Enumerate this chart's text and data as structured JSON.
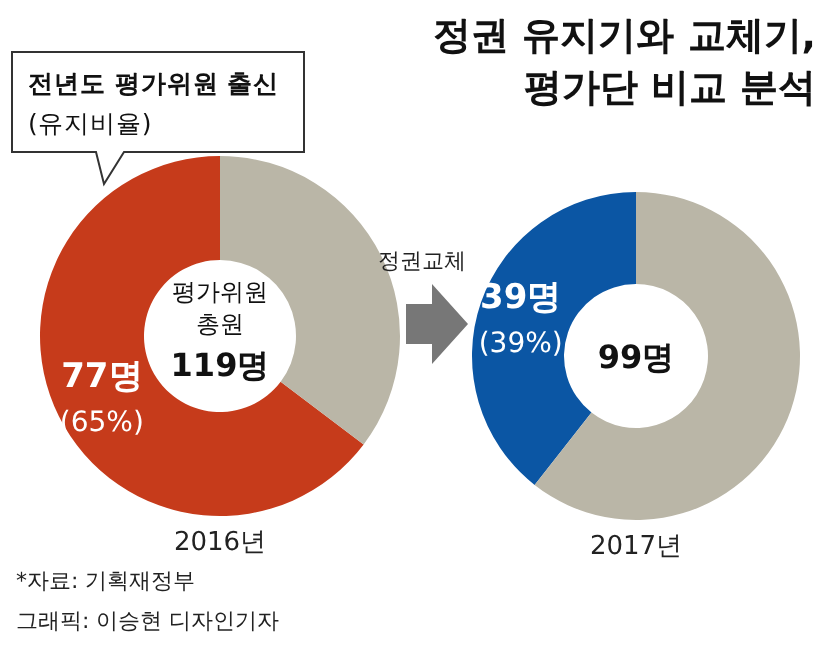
{
  "chart_data": [
    {
      "type": "donut",
      "categories": [
        null,
        null
      ],
      "values": [
        77,
        42
      ],
      "colors": [
        "#c63b1b",
        "#bab6a7"
      ],
      "value_labels": [
        "77명 (65%)",
        null
      ],
      "xlabel": "2016년",
      "annotations": [
        "평가위원",
        "총원",
        "119명",
        "전년도 평가위원 출신",
        "(유지비율)",
        "*자료: 기획재정부",
        "그래픽: 이승현 디자인기자"
      ]
    },
    {
      "type": "donut",
      "title": "정권 유지기와 교체기,\n평가단 비교 분석",
      "categories": [
        null,
        null
      ],
      "values": [
        39,
        60
      ],
      "colors": [
        "#0b56a4",
        "#bab6a7"
      ],
      "value_labels": [
        "39명 (39%)",
        null
      ],
      "xlabel": "2017년",
      "annotations": [
        "99명",
        "정권교체"
      ]
    }
  ]
}
